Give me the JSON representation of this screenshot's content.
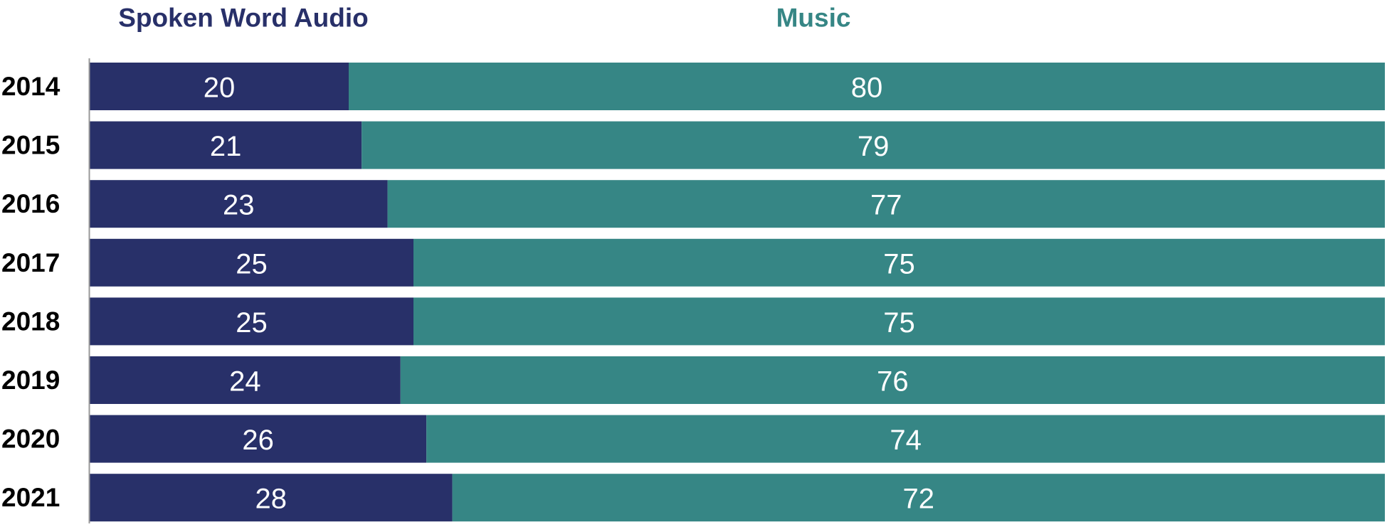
{
  "chart_data": {
    "type": "stacked-bar-horizontal",
    "categories": [
      "2014",
      "2015",
      "2016",
      "2017",
      "2018",
      "2019",
      "2020",
      "2021"
    ],
    "series": [
      {
        "name": "Spoken Word Audio",
        "color": "#283069",
        "values": [
          20,
          21,
          23,
          25,
          25,
          24,
          26,
          28
        ]
      },
      {
        "name": "Music",
        "color": "#368685",
        "values": [
          80,
          79,
          77,
          75,
          75,
          76,
          74,
          72
        ]
      }
    ],
    "xlim": [
      0,
      100
    ]
  }
}
